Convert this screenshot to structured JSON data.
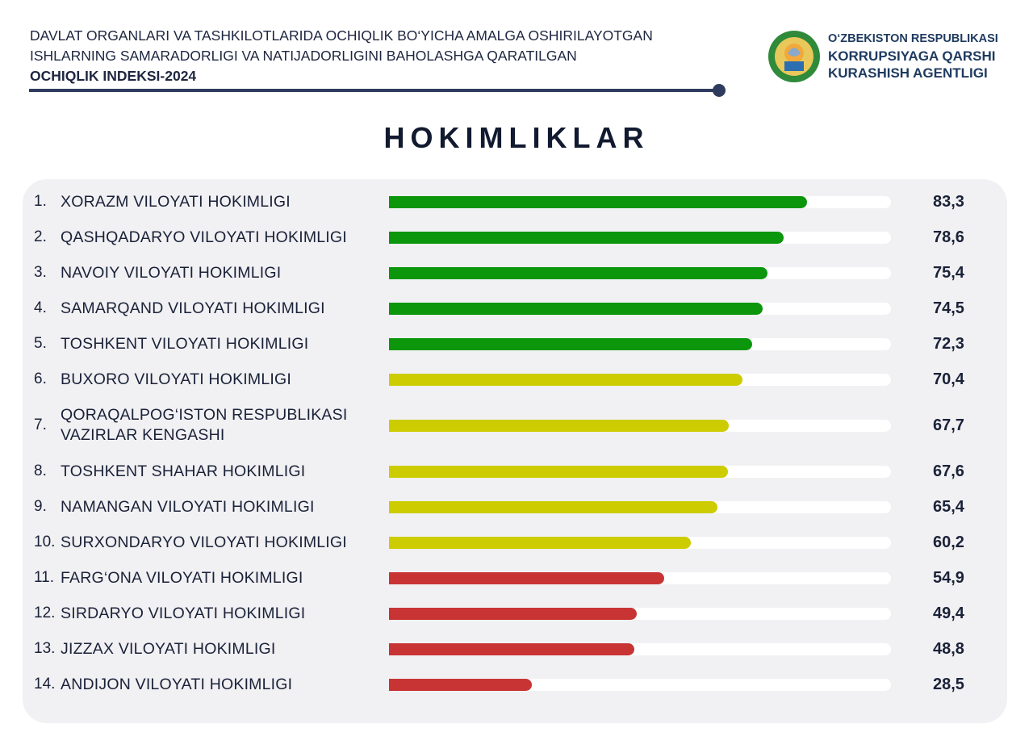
{
  "header": {
    "line1": "DAVLAT ORGANLARI VA TASHKILOTLARIDA OCHIQLIK BO‘YICHA AMALGA OSHIRILAYOTGAN",
    "line2": "ISHLARNING SAMARADORLIGI VA NATIJADORLIGINI BAHOLASHGA QARATILGAN",
    "line3": "OCHIQLIK INDEKSI-2024"
  },
  "org": {
    "line1": "O‘ZBEKISTON RESPUBLIKASI",
    "line2": "KORRUPSIYAGA QARSHI",
    "line3": "KURASHISH AGENTLIGI",
    "logo": "Uzbekistan state emblem"
  },
  "colors": {
    "high": "#0b960b",
    "mid": "#cccc00",
    "low": "#c83434"
  },
  "chart_data": {
    "type": "bar",
    "orientation": "horizontal",
    "title": "HOKIMLIKLAR",
    "xlim": [
      0,
      100
    ],
    "grid": false,
    "categories": [
      {
        "rank": "1.",
        "label": "XORAZM VILOYATI HOKIMLIGI",
        "value": "83,3",
        "v": 83.3,
        "level": "high"
      },
      {
        "rank": "2.",
        "label": "QASHQADARYO VILOYATI HOKIMLIGI",
        "value": "78,6",
        "v": 78.6,
        "level": "high"
      },
      {
        "rank": "3.",
        "label": "NAVOIY VILOYATI HOKIMLIGI",
        "value": "75,4",
        "v": 75.4,
        "level": "high"
      },
      {
        "rank": "4.",
        "label": "SAMARQAND VILOYATI HOKIMLIGI",
        "value": "74,5",
        "v": 74.5,
        "level": "high"
      },
      {
        "rank": "5.",
        "label": "TOSHKENT VILOYATI HOKIMLIGI",
        "value": "72,3",
        "v": 72.3,
        "level": "high"
      },
      {
        "rank": "6.",
        "label": "BUXORO VILOYATI HOKIMLIGI",
        "value": "70,4",
        "v": 70.4,
        "level": "mid"
      },
      {
        "rank": "7.",
        "label": "QORAQALPOG‘ISTON RESPUBLIKASI VAZIRLAR KENGASHI",
        "value": "67,7",
        "v": 67.7,
        "level": "mid"
      },
      {
        "rank": "8.",
        "label": "TOSHKENT SHAHAR HOKIMLIGI",
        "value": "67,6",
        "v": 67.6,
        "level": "mid"
      },
      {
        "rank": "9.",
        "label": "NAMANGAN VILOYATI HOKIMLIGI",
        "value": "65,4",
        "v": 65.4,
        "level": "mid"
      },
      {
        "rank": "10.",
        "label": "SURXONDARYO VILOYATI HOKIMLIGI",
        "value": "60,2",
        "v": 60.2,
        "level": "mid"
      },
      {
        "rank": "11.",
        "label": "FARG‘ONA VILOYATI HOKIMLIGI",
        "value": "54,9",
        "v": 54.9,
        "level": "low"
      },
      {
        "rank": "12.",
        "label": "SIRDARYO VILOYATI HOKIMLIGI",
        "value": "49,4",
        "v": 49.4,
        "level": "low"
      },
      {
        "rank": "13.",
        "label": "JIZZAX VILOYATI HOKIMLIGI",
        "value": "48,8",
        "v": 48.8,
        "level": "low"
      },
      {
        "rank": "14.",
        "label": "ANDIJON VILOYATI HOKIMLIGI",
        "value": "28,5",
        "v": 28.5,
        "level": "low"
      }
    ]
  }
}
